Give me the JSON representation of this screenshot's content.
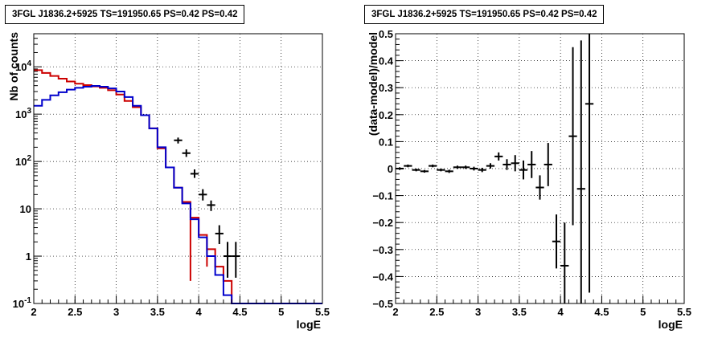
{
  "chart_data": [
    {
      "type": "histogram",
      "title": "3FGL J1836.2+5925 TS=191950.65 PS=0.42 PS=0.42",
      "xlabel": "logE",
      "ylabel": "Nb of counts",
      "xlim": [
        2,
        5.5
      ],
      "ylim": [
        0.1,
        50000
      ],
      "yscale": "log",
      "grid": true,
      "x_ticks": [
        "2",
        "2.5",
        "3",
        "3.5",
        "4",
        "4.5",
        "5",
        "5.5"
      ],
      "y_ticks": [
        {
          "value": 0.1,
          "label": "10",
          "exp": "-1"
        },
        {
          "value": 1,
          "label": "1",
          "exp": ""
        },
        {
          "value": 10,
          "label": "10",
          "exp": ""
        },
        {
          "value": 100,
          "label": "10",
          "exp": "2"
        },
        {
          "value": 1000,
          "label": "10",
          "exp": "3"
        },
        {
          "value": 10000,
          "label": "10",
          "exp": "4"
        }
      ],
      "bin_edges": [
        2.0,
        2.1,
        2.2,
        2.3,
        2.4,
        2.5,
        2.6,
        2.7,
        2.8,
        2.9,
        3.0,
        3.1,
        3.2,
        3.3,
        3.4,
        3.5,
        3.6,
        3.7,
        3.8,
        3.9,
        4.0,
        4.1,
        4.2,
        4.3,
        4.4,
        4.5,
        4.6,
        4.7,
        4.8,
        4.9,
        5.0,
        5.1,
        5.2,
        5.3,
        5.4,
        5.5
      ],
      "series": [
        {
          "color": "#cc0000",
          "values": [
            8500,
            7400,
            6400,
            5600,
            4900,
            4400,
            4100,
            3850,
            3600,
            3200,
            2600,
            1900,
            1400,
            950,
            500,
            190,
            75,
            28,
            14,
            6.5,
            2.8,
            1.4,
            0.6,
            0.3,
            0.1,
            0.1,
            0.1,
            0.1,
            0.1,
            0.1,
            0.1,
            0.1,
            0.1,
            0.1,
            0.1
          ],
          "errors": [
            [
              3.9,
              0.3,
              6
            ],
            [
              4.1,
              0.6,
              2.5
            ]
          ]
        },
        {
          "color": "#0000cc",
          "values": [
            1500,
            2000,
            2500,
            2900,
            3300,
            3600,
            3800,
            3950,
            3800,
            3500,
            3000,
            2300,
            1500,
            950,
            500,
            200,
            75,
            28,
            13,
            6.0,
            2.5,
            1.0,
            0.4,
            0.15,
            0.1,
            0.1,
            0.1,
            0.1,
            0.1,
            0.1,
            0.1,
            0.1,
            0.1,
            0.1,
            0.1
          ]
        },
        {
          "color": "#000000",
          "points": [
            {
              "x": 3.75,
              "y": 280,
              "ylo": 240,
              "yhi": 320
            },
            {
              "x": 3.85,
              "y": 150,
              "ylo": 125,
              "yhi": 180
            },
            {
              "x": 3.95,
              "y": 55,
              "ylo": 45,
              "yhi": 68
            },
            {
              "x": 4.05,
              "y": 20,
              "ylo": 15,
              "yhi": 26
            },
            {
              "x": 4.15,
              "y": 12,
              "ylo": 9,
              "yhi": 15
            },
            {
              "x": 4.25,
              "y": 3,
              "ylo": 1.8,
              "yhi": 4.5
            },
            {
              "x": 4.35,
              "y": 1,
              "ylo": 0.35,
              "yhi": 2
            },
            {
              "x": 4.45,
              "y": 1,
              "ylo": 0.35,
              "yhi": 2
            }
          ]
        }
      ]
    },
    {
      "type": "scatter",
      "title": "3FGL J1836.2+5925 TS=191950.65 PS=0.42 PS=0.42",
      "xlabel": "logE",
      "ylabel": "(data-model)/model",
      "xlim": [
        2,
        5.5
      ],
      "ylim": [
        -0.5,
        0.5
      ],
      "grid": true,
      "x_ticks": [
        "2",
        "2.5",
        "3",
        "3.5",
        "4",
        "4.5",
        "5",
        "5.5"
      ],
      "y_ticks": [
        "0.5",
        "0.4",
        "0.3",
        "0.2",
        "0.1",
        "0",
        "−0.1",
        "−0.2",
        "−0.3",
        "−0.4",
        "−0.5"
      ],
      "points": [
        {
          "x": 2.05,
          "y": 0.0,
          "err": 0.005
        },
        {
          "x": 2.15,
          "y": 0.01,
          "err": 0.005
        },
        {
          "x": 2.25,
          "y": -0.005,
          "err": 0.005
        },
        {
          "x": 2.35,
          "y": -0.01,
          "err": 0.005
        },
        {
          "x": 2.45,
          "y": 0.01,
          "err": 0.005
        },
        {
          "x": 2.55,
          "y": -0.005,
          "err": 0.005
        },
        {
          "x": 2.65,
          "y": -0.01,
          "err": 0.006
        },
        {
          "x": 2.75,
          "y": 0.005,
          "err": 0.006
        },
        {
          "x": 2.85,
          "y": 0.005,
          "err": 0.006
        },
        {
          "x": 2.95,
          "y": 0.0,
          "err": 0.007
        },
        {
          "x": 3.05,
          "y": -0.005,
          "err": 0.008
        },
        {
          "x": 3.15,
          "y": 0.01,
          "err": 0.01
        },
        {
          "x": 3.25,
          "y": 0.045,
          "err": 0.015
        },
        {
          "x": 3.35,
          "y": 0.015,
          "err": 0.02
        },
        {
          "x": 3.45,
          "y": 0.02,
          "err": 0.03
        },
        {
          "x": 3.55,
          "y": -0.005,
          "err": 0.035
        },
        {
          "x": 3.65,
          "y": 0.015,
          "err": 0.05
        },
        {
          "x": 3.75,
          "y": -0.07,
          "err": 0.045
        },
        {
          "x": 3.85,
          "y": 0.015,
          "err": 0.08
        },
        {
          "x": 3.95,
          "y": -0.27,
          "err": 0.1
        },
        {
          "x": 4.05,
          "y": -0.36,
          "err": 0.16
        },
        {
          "x": 4.15,
          "y": 0.12,
          "err": 0.33
        },
        {
          "x": 4.25,
          "y": -0.075,
          "err": 0.55
        },
        {
          "x": 4.35,
          "y": 0.24,
          "err": 0.7
        }
      ]
    }
  ]
}
